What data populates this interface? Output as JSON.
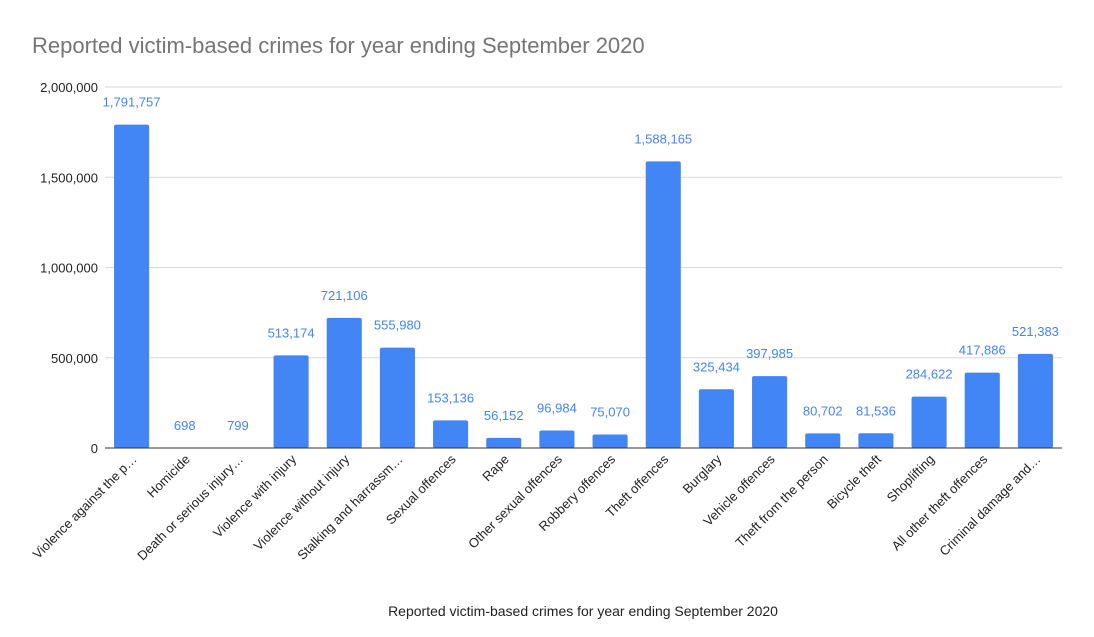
{
  "chart_data": {
    "type": "bar",
    "title": "Reported victim-based crimes for year ending September 2020",
    "xlabel": "Reported victim-based crimes for year ending September 2020",
    "ylabel": "",
    "ylim": [
      0,
      2000000
    ],
    "yticks": [
      0,
      500000,
      1000000,
      1500000,
      2000000
    ],
    "ytick_labels": [
      "0",
      "500,000",
      "1,000,000",
      "1,500,000",
      "2,000,000"
    ],
    "grid": true,
    "categories": [
      "Violence against the p…",
      "Homicide",
      "Death or serious injury…",
      "Violence with injury",
      "Violence without injury",
      "Stalking and harrassm…",
      "Sexual offences",
      "Rape",
      "Other sexual offences",
      "Robbery offences",
      "Theft offences",
      "Burglary",
      "Vehicle offences",
      "Theft from the person",
      "Bicycle theft",
      "Shoplifting",
      "All other theft offences",
      "Criminal damage and…"
    ],
    "values": [
      1791757,
      698,
      799,
      513174,
      721106,
      555980,
      153136,
      56152,
      96984,
      75070,
      1588165,
      325434,
      397985,
      80702,
      81536,
      284622,
      417886,
      521383
    ],
    "value_labels": [
      "1,791,757",
      "698",
      "799",
      "513,174",
      "721,106",
      "555,980",
      "153,136",
      "56,152",
      "96,984",
      "75,070",
      "1,588,165",
      "325,434",
      "397,985",
      "80,702",
      "81,536",
      "284,622",
      "417,886",
      "521,383"
    ],
    "colors": {
      "bar": "#4285f4",
      "label": "#4285f4",
      "grid": "#d9d9d9",
      "title": "#757575"
    }
  }
}
